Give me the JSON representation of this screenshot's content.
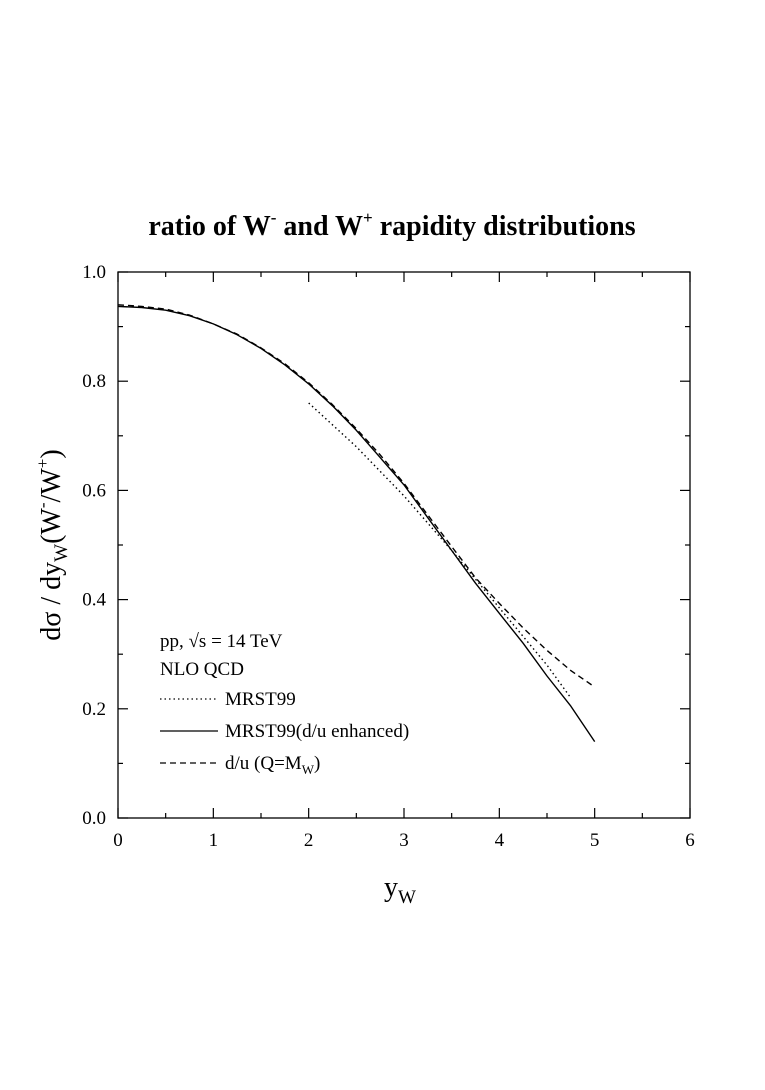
{
  "chart_data": {
    "type": "line",
    "title": {
      "main": "ratio of W",
      "sup_minus": "-",
      "middle": " and W",
      "sup_plus": "+",
      "end": " rapidity distributions"
    },
    "xlabel": {
      "base": "y",
      "sub": "W"
    },
    "ylabel": {
      "prefix": "dσ / dy",
      "sub": "W",
      "mid": "(W",
      "sup_minus": "-",
      "mid2": "/W",
      "sup_plus": "+",
      "suffix": ")"
    },
    "xlim": [
      0,
      6
    ],
    "ylim": [
      0,
      1.0
    ],
    "xticks": [
      0,
      1,
      2,
      3,
      4,
      5,
      6
    ],
    "xtick_labels": [
      "0",
      "1",
      "2",
      "3",
      "4",
      "5",
      "6"
    ],
    "yticks": [
      0,
      0.2,
      0.4,
      0.6,
      0.8,
      1.0
    ],
    "ytick_labels": [
      "0.0",
      "0.2",
      "0.4",
      "0.6",
      "0.8",
      "1.0"
    ],
    "annotations": [
      "pp, √s = 14 TeV",
      "NLO QCD"
    ],
    "series": [
      {
        "name": "MRST99",
        "style": "dotted",
        "x": [
          2.0,
          2.5,
          3.0,
          3.5,
          4.0,
          4.5,
          4.75
        ],
        "y": [
          0.76,
          0.68,
          0.59,
          0.49,
          0.385,
          0.28,
          0.22
        ]
      },
      {
        "name": "MRST99(d/u enhanced)",
        "style": "solid",
        "x": [
          0.0,
          0.25,
          0.5,
          0.75,
          1.0,
          1.25,
          1.5,
          1.75,
          2.0,
          2.25,
          2.5,
          2.75,
          3.0,
          3.25,
          3.5,
          3.75,
          4.0,
          4.25,
          4.5,
          4.75,
          5.0
        ],
        "y": [
          0.937,
          0.935,
          0.93,
          0.92,
          0.905,
          0.885,
          0.86,
          0.83,
          0.795,
          0.755,
          0.71,
          0.66,
          0.61,
          0.55,
          0.49,
          0.43,
          0.375,
          0.32,
          0.26,
          0.205,
          0.14
        ]
      },
      {
        "name": "d/u (Q=M",
        "name_sub": "W",
        "name_end": ")",
        "style": "dashed",
        "x": [
          0.0,
          0.25,
          0.5,
          0.75,
          1.0,
          1.25,
          1.5,
          1.75,
          2.0,
          2.25,
          2.5,
          2.75,
          3.0,
          3.25,
          3.5,
          3.75,
          4.0,
          4.25,
          4.5,
          4.75,
          5.0
        ],
        "y": [
          0.94,
          0.937,
          0.932,
          0.921,
          0.905,
          0.886,
          0.861,
          0.832,
          0.797,
          0.757,
          0.713,
          0.665,
          0.613,
          0.555,
          0.497,
          0.44,
          0.393,
          0.348,
          0.307,
          0.27,
          0.24
        ]
      }
    ]
  }
}
